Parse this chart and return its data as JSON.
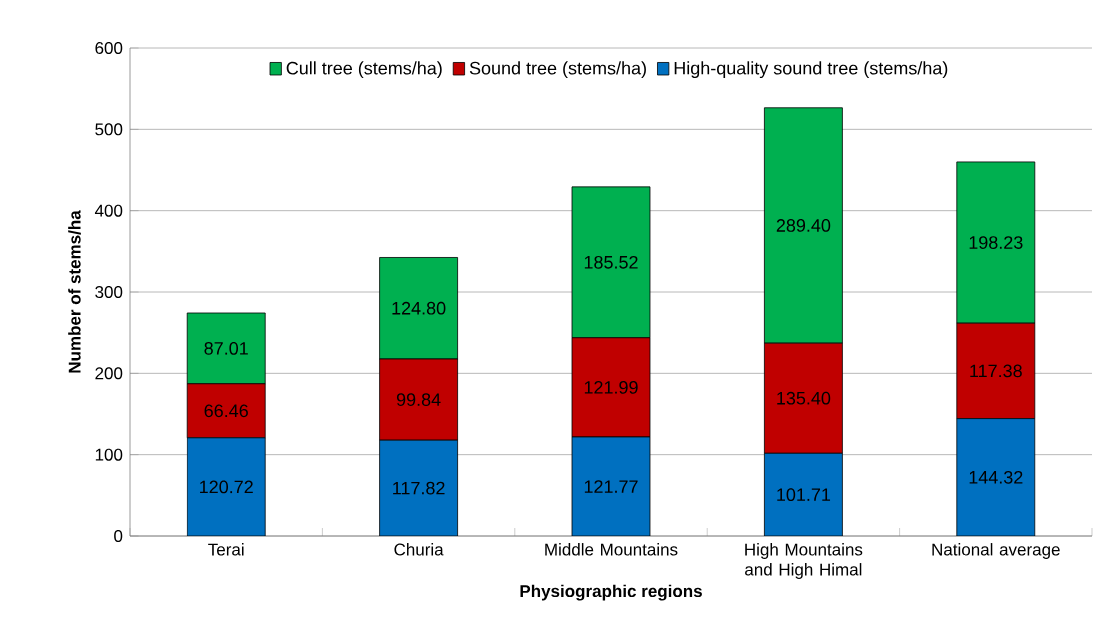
{
  "chart_data": {
    "type": "bar",
    "stacked": true,
    "xlabel": "Physiographic regions",
    "ylabel": "Number of stems/ha",
    "categories": [
      "Terai",
      "Churia",
      "Middle Mountains",
      "High Mountains and High Himal",
      "National average"
    ],
    "series": [
      {
        "name": "High-quality sound tree (stems/ha)",
        "color": "#0070c0",
        "values": [
          120.72,
          117.82,
          121.77,
          101.71,
          144.32
        ],
        "value_labels": [
          "120.72",
          "117.82",
          "121.77",
          "101.71",
          "144.32"
        ]
      },
      {
        "name": "Sound tree (stems/ha)",
        "color": "#c00000",
        "values": [
          66.46,
          99.84,
          121.99,
          135.4,
          117.38
        ],
        "value_labels": [
          "66.46",
          "99.84",
          "121.99",
          "135.40",
          "117.38"
        ]
      },
      {
        "name": "Cull tree (stems/ha)",
        "color": "#00b050",
        "values": [
          87.01,
          124.8,
          185.52,
          289.4,
          198.23
        ],
        "value_labels": [
          "87.01",
          "124.80",
          "185.52",
          "289.40",
          "198.23"
        ]
      }
    ],
    "ylim": [
      0,
      600
    ],
    "yticks": [
      0,
      100,
      200,
      300,
      400,
      500,
      600
    ],
    "grid": "y",
    "legend": "top"
  }
}
